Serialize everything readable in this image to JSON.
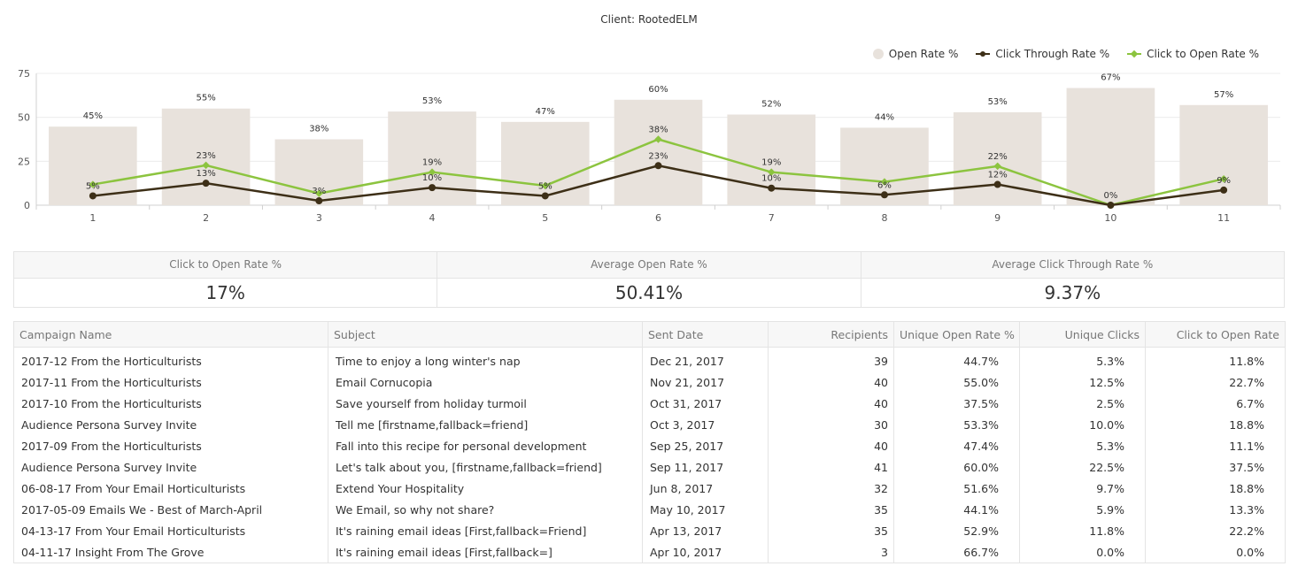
{
  "chart_title": "Client: RootedELM",
  "legend": [
    {
      "label": "Open Rate %",
      "kind": "dot",
      "color": "#e8e2dc"
    },
    {
      "label": "Click Through Rate %",
      "kind": "line",
      "color": "#3d2f17"
    },
    {
      "label": "Click to Open Rate %",
      "kind": "line-diamond",
      "color": "#8cc43f"
    }
  ],
  "chart_data": {
    "type": "bar",
    "categories": [
      "1",
      "2",
      "3",
      "4",
      "5",
      "6",
      "7",
      "8",
      "9",
      "10",
      "11"
    ],
    "ylim": [
      0,
      75
    ],
    "yticks": [
      0,
      25,
      50,
      75
    ],
    "grid": true,
    "legend_position": "top-right",
    "series": [
      {
        "name": "Open Rate %",
        "type": "bar",
        "color": "#e8e2dc",
        "values": [
          44.7,
          55.0,
          37.5,
          53.3,
          47.4,
          60.0,
          51.6,
          44.1,
          52.9,
          66.7,
          57.0
        ],
        "labels": [
          "45%",
          "55%",
          "38%",
          "53%",
          "47%",
          "60%",
          "52%",
          "44%",
          "53%",
          "67%",
          "57%"
        ]
      },
      {
        "name": "Click Through Rate %",
        "type": "line",
        "color": "#3d2f17",
        "values": [
          5.3,
          12.5,
          2.5,
          10.0,
          5.3,
          22.5,
          9.7,
          5.9,
          11.8,
          0.0,
          8.6
        ],
        "labels": [
          "5%",
          "13%",
          "3%",
          "10%",
          "5%",
          "23%",
          "10%",
          "6%",
          "12%",
          "0%",
          "9%"
        ]
      },
      {
        "name": "Click to Open Rate %",
        "type": "line",
        "color": "#8cc43f",
        "values": [
          11.8,
          22.7,
          6.7,
          18.8,
          11.1,
          37.5,
          18.8,
          13.3,
          22.2,
          0.0,
          15.0
        ],
        "labels": [
          "",
          "23%",
          "",
          "19%",
          "",
          "38%",
          "19%",
          "",
          "22%",
          "",
          ""
        ]
      }
    ]
  },
  "kpis": [
    {
      "label": "Click to Open Rate %",
      "value": "17%"
    },
    {
      "label": "Average Open Rate %",
      "value": "50.41%"
    },
    {
      "label": "Average Click Through Rate %",
      "value": "9.37%"
    }
  ],
  "table": {
    "columns": [
      "Campaign Name",
      "Subject",
      "Sent Date",
      "Recipients",
      "Unique Open Rate %",
      "Unique Clicks",
      "Click to Open Rate"
    ],
    "rows": [
      [
        "2017-12 From the Horticulturists",
        "Time to enjoy a long winter's nap",
        "Dec 21, 2017",
        "39",
        "44.7%",
        "5.3%",
        "11.8%"
      ],
      [
        "2017-11 From the Horticulturists",
        "Email Cornucopia",
        "Nov 21, 2017",
        "40",
        "55.0%",
        "12.5%",
        "22.7%"
      ],
      [
        "2017-10 From the Horticulturists",
        "Save yourself from holiday turmoil",
        "Oct 31, 2017",
        "40",
        "37.5%",
        "2.5%",
        "6.7%"
      ],
      [
        "Audience Persona Survey Invite",
        "Tell me [firstname,fallback=friend]",
        "Oct 3, 2017",
        "30",
        "53.3%",
        "10.0%",
        "18.8%"
      ],
      [
        "2017-09 From the Horticulturists",
        "Fall into this recipe for personal development",
        "Sep 25, 2017",
        "40",
        "47.4%",
        "5.3%",
        "11.1%"
      ],
      [
        "Audience Persona Survey Invite",
        "Let's talk about you, [firstname,fallback=friend]",
        "Sep 11, 2017",
        "41",
        "60.0%",
        "22.5%",
        "37.5%"
      ],
      [
        "06-08-17 From Your Email Horticulturists",
        "Extend Your Hospitality",
        "Jun 8, 2017",
        "32",
        "51.6%",
        "9.7%",
        "18.8%"
      ],
      [
        "2017-05-09 Emails We    - Best of March-April",
        "We    Email, so why not share?",
        "May 10, 2017",
        "35",
        "44.1%",
        "5.9%",
        "13.3%"
      ],
      [
        "04-13-17 From Your Email Horticulturists",
        "It's raining email ideas [First,fallback=Friend]",
        "Apr 13, 2017",
        "35",
        "52.9%",
        "11.8%",
        "22.2%"
      ],
      [
        "04-11-17 Insight From The Grove",
        "It's raining email ideas [First,fallback=]",
        "Apr 10, 2017",
        "3",
        "66.7%",
        "0.0%",
        "0.0%"
      ]
    ]
  }
}
